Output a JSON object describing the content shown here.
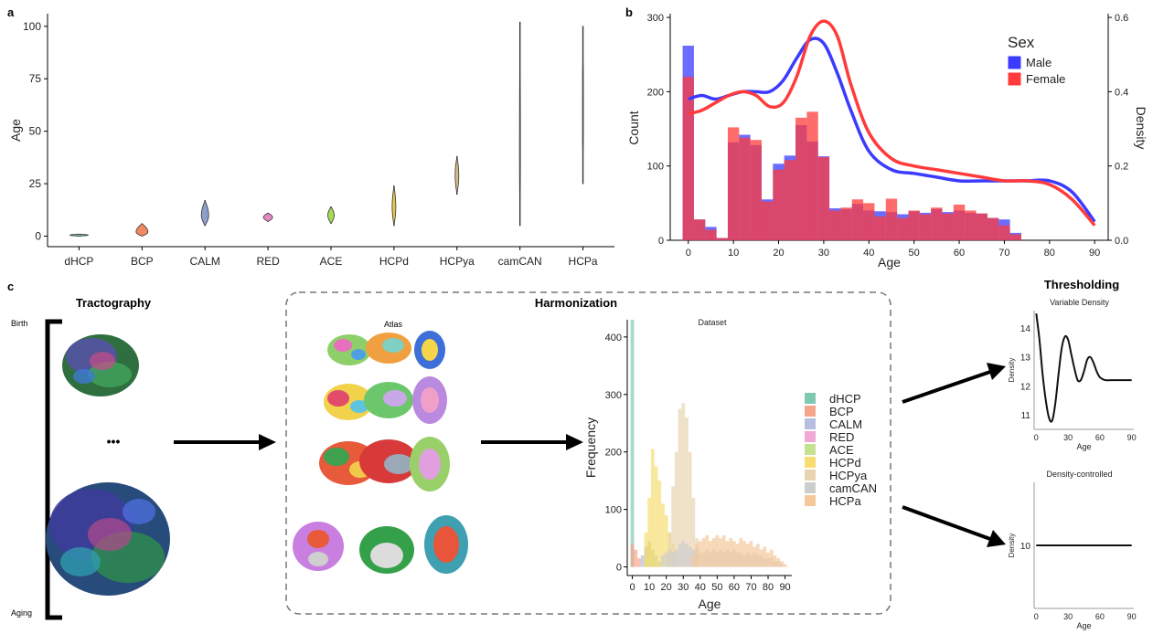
{
  "panels": {
    "a": "a",
    "b": "b",
    "c": "c"
  },
  "panel_c": {
    "tractography_title": "Tractography",
    "birth_label": "Birth",
    "aging_label": "Aging",
    "ellipsis": "•••",
    "harmonization_title": "Harmonization",
    "atlas_label": "Atlas",
    "thresholding_title": "Thresholding"
  },
  "chart_data": [
    {
      "id": "violin",
      "type": "violin",
      "ylabel": "Age",
      "ylim": [
        -5,
        106
      ],
      "yticks": [
        0,
        25,
        50,
        75,
        100
      ],
      "categories": [
        "dHCP",
        "BCP",
        "CALM",
        "RED",
        "ACE",
        "HCPd",
        "HCPya",
        "camCAN",
        "HCPa"
      ],
      "ranges": [
        [
          0,
          1
        ],
        [
          0,
          6
        ],
        [
          5,
          17
        ],
        [
          7,
          11
        ],
        [
          6,
          14
        ],
        [
          5,
          24
        ],
        [
          20,
          38
        ],
        [
          5,
          102
        ],
        [
          25,
          100
        ]
      ],
      "modes": [
        0.5,
        2,
        10,
        9,
        10,
        14,
        29,
        40,
        60
      ],
      "widths": [
        20,
        13,
        8,
        10,
        7,
        4,
        4,
        1,
        1
      ],
      "colors": [
        "#78c2ae",
        "#ef8a62",
        "#8da0cb",
        "#e78ac3",
        "#a6d854",
        "#e6c84f",
        "#d9b98a",
        "#bbbbbb",
        "#e3b082"
      ]
    },
    {
      "id": "hist-sex",
      "type": "histogram+density",
      "xlabel": "Age",
      "ylabel": "Count",
      "ylabel_right": "Density",
      "xlim": [
        -4,
        93
      ],
      "ylim": [
        0,
        305
      ],
      "ylim_right": [
        0,
        0.61
      ],
      "xticks": [
        0,
        10,
        20,
        30,
        40,
        50,
        60,
        70,
        80,
        90
      ],
      "yticks": [
        0,
        100,
        200,
        300
      ],
      "yticks_right": [
        0.0,
        0.2,
        0.4,
        0.6
      ],
      "legend_title": "Sex",
      "bin_width": 2.5,
      "bin_start": -1.25,
      "series": [
        {
          "name": "Male",
          "color": "#3b3bff",
          "counts": [
            262,
            28,
            18,
            3,
            132,
            142,
            128,
            55,
            103,
            114,
            155,
            133,
            113,
            43,
            42,
            49,
            40,
            39,
            38,
            35,
            39,
            37,
            42,
            38,
            40,
            37,
            36,
            30,
            28,
            10
          ]
        },
        {
          "name": "Female",
          "color": "#ff3b3b",
          "counts": [
            220,
            28,
            14,
            3,
            152,
            138,
            135,
            52,
            95,
            108,
            165,
            173,
            112,
            40,
            44,
            55,
            50,
            32,
            56,
            30,
            40,
            35,
            44,
            36,
            48,
            40,
            36,
            30,
            20,
            8
          ]
        }
      ],
      "density": [
        {
          "name": "Male",
          "color": "#3b3bff",
          "x": [
            0,
            3,
            6,
            9,
            12,
            15,
            18,
            21,
            24,
            27,
            30,
            33,
            36,
            40,
            45,
            50,
            55,
            60,
            65,
            70,
            75,
            80,
            85,
            90
          ],
          "y": [
            0.38,
            0.39,
            0.38,
            0.39,
            0.4,
            0.4,
            0.4,
            0.43,
            0.49,
            0.54,
            0.53,
            0.45,
            0.35,
            0.24,
            0.19,
            0.18,
            0.17,
            0.16,
            0.16,
            0.16,
            0.16,
            0.16,
            0.13,
            0.05
          ]
        },
        {
          "name": "Female",
          "color": "#ff3b3b",
          "x": [
            0,
            3,
            6,
            9,
            12,
            15,
            18,
            21,
            24,
            27,
            30,
            33,
            36,
            40,
            45,
            50,
            55,
            60,
            65,
            70,
            75,
            80,
            85,
            90
          ],
          "y": [
            0.34,
            0.35,
            0.37,
            0.39,
            0.4,
            0.39,
            0.36,
            0.37,
            0.44,
            0.55,
            0.59,
            0.55,
            0.42,
            0.29,
            0.22,
            0.2,
            0.19,
            0.18,
            0.17,
            0.16,
            0.16,
            0.15,
            0.11,
            0.04
          ]
        }
      ]
    },
    {
      "id": "dataset-hist",
      "type": "histogram",
      "title": "Dataset",
      "xlabel": "Age",
      "ylabel": "Frequency",
      "xlim": [
        -3,
        94
      ],
      "ylim": [
        -15,
        430
      ],
      "xticks": [
        0,
        10,
        20,
        30,
        40,
        50,
        60,
        70,
        80,
        90
      ],
      "yticks": [
        0,
        100,
        200,
        300,
        400
      ],
      "bin_width": 2,
      "series": [
        {
          "name": "dHCP",
          "color": "#7fc9b3",
          "bins": [
            [
              -1,
              430
            ]
          ]
        },
        {
          "name": "BCP",
          "color": "#f5a58a",
          "bins": [
            [
              -1,
              40
            ],
            [
              1,
              30
            ],
            [
              3,
              15
            ]
          ]
        },
        {
          "name": "CALM",
          "color": "#b7bedf",
          "bins": [
            [
              5,
              20
            ],
            [
              7,
              35
            ],
            [
              9,
              45
            ],
            [
              11,
              30
            ],
            [
              13,
              20
            ],
            [
              15,
              10
            ]
          ]
        },
        {
          "name": "RED",
          "color": "#f0a8d6",
          "bins": [
            [
              7,
              30
            ],
            [
              9,
              40
            ],
            [
              11,
              20
            ]
          ]
        },
        {
          "name": "ACE",
          "color": "#c4e28f",
          "bins": [
            [
              7,
              20
            ],
            [
              9,
              40
            ],
            [
              11,
              30
            ],
            [
              13,
              10
            ]
          ]
        },
        {
          "name": "HCPd",
          "color": "#f7dd70",
          "bins": [
            [
              7,
              60
            ],
            [
              9,
              120
            ],
            [
              11,
              205
            ],
            [
              13,
              175
            ],
            [
              15,
              150
            ],
            [
              17,
              110
            ],
            [
              19,
              90
            ],
            [
              21,
              60
            ],
            [
              23,
              40
            ]
          ]
        },
        {
          "name": "HCPya",
          "color": "#e8d4b0",
          "bins": [
            [
              21,
              60
            ],
            [
              23,
              140
            ],
            [
              25,
              200
            ],
            [
              27,
              275
            ],
            [
              29,
              285
            ],
            [
              31,
              260
            ],
            [
              33,
              200
            ],
            [
              35,
              120
            ],
            [
              37,
              50
            ]
          ]
        },
        {
          "name": "camCAN",
          "color": "#cdcdcd",
          "bins": [
            [
              17,
              20
            ],
            [
              19,
              25
            ],
            [
              21,
              30
            ],
            [
              23,
              25
            ],
            [
              25,
              30
            ],
            [
              27,
              40
            ],
            [
              29,
              45
            ],
            [
              31,
              40
            ],
            [
              33,
              35
            ],
            [
              35,
              30
            ],
            [
              37,
              30
            ],
            [
              39,
              25
            ],
            [
              41,
              25
            ],
            [
              43,
              30
            ],
            [
              45,
              25
            ],
            [
              47,
              30
            ],
            [
              49,
              25
            ],
            [
              51,
              30
            ],
            [
              53,
              25
            ],
            [
              55,
              30
            ],
            [
              57,
              25
            ],
            [
              59,
              30
            ],
            [
              61,
              25
            ],
            [
              63,
              25
            ],
            [
              65,
              20
            ],
            [
              67,
              25
            ],
            [
              69,
              20
            ],
            [
              71,
              25
            ],
            [
              73,
              20
            ],
            [
              75,
              20
            ],
            [
              77,
              15
            ],
            [
              79,
              15
            ],
            [
              81,
              15
            ],
            [
              83,
              10
            ],
            [
              85,
              10
            ],
            [
              87,
              5
            ]
          ]
        },
        {
          "name": "HCPa",
          "color": "#f4c89a",
          "bins": [
            [
              35,
              20
            ],
            [
              37,
              40
            ],
            [
              39,
              45
            ],
            [
              41,
              50
            ],
            [
              43,
              55
            ],
            [
              45,
              45
            ],
            [
              47,
              50
            ],
            [
              49,
              55
            ],
            [
              51,
              50
            ],
            [
              53,
              55
            ],
            [
              55,
              45
            ],
            [
              57,
              50
            ],
            [
              59,
              45
            ],
            [
              61,
              40
            ],
            [
              63,
              50
            ],
            [
              65,
              45
            ],
            [
              67,
              40
            ],
            [
              69,
              45
            ],
            [
              71,
              35
            ],
            [
              73,
              40
            ],
            [
              75,
              30
            ],
            [
              77,
              35
            ],
            [
              79,
              25
            ],
            [
              81,
              30
            ],
            [
              83,
              20
            ],
            [
              85,
              15
            ],
            [
              87,
              10
            ],
            [
              89,
              5
            ]
          ]
        }
      ]
    },
    {
      "id": "variable-density",
      "type": "line",
      "title": "Variable Density",
      "xlabel": "Age",
      "ylabel": "Density",
      "xlim": [
        -2,
        92
      ],
      "ylim": [
        10.5,
        14.6
      ],
      "xticks": [
        0,
        30,
        60,
        90
      ],
      "yticks": [
        11,
        12,
        13,
        14
      ],
      "x": [
        0,
        3,
        6,
        9,
        12,
        15,
        18,
        21,
        24,
        27,
        30,
        33,
        36,
        39,
        42,
        45,
        48,
        51,
        54,
        57,
        60,
        65,
        70,
        75,
        80,
        90
      ],
      "y": [
        14.5,
        13.6,
        12.4,
        11.5,
        10.9,
        10.8,
        11.4,
        12.4,
        13.3,
        13.7,
        13.6,
        13.1,
        12.6,
        12.2,
        12.2,
        12.5,
        12.9,
        13.0,
        12.8,
        12.5,
        12.3,
        12.2,
        12.2,
        12.2,
        12.2,
        12.2
      ]
    },
    {
      "id": "density-controlled",
      "type": "line",
      "title": "Density-controlled",
      "xlabel": "Age",
      "ylabel": "Density",
      "xlim": [
        -2,
        92
      ],
      "ylim": [
        8,
        12
      ],
      "xticks": [
        0,
        30,
        60,
        90
      ],
      "yticks": [
        10
      ],
      "x": [
        0,
        90
      ],
      "y": [
        10,
        10
      ]
    }
  ]
}
